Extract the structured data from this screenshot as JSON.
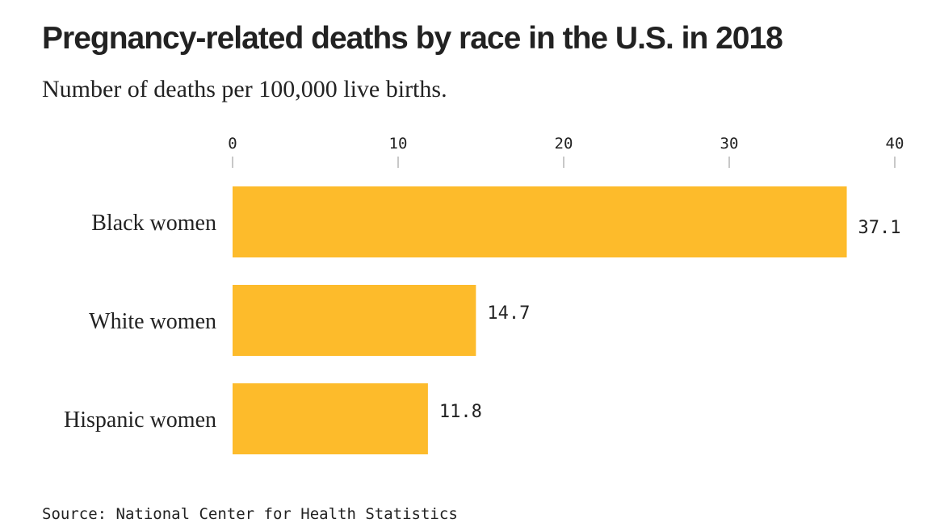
{
  "chart_data": {
    "type": "bar",
    "orientation": "horizontal",
    "title": "Pregnancy-related deaths by race in the U.S. in 2018",
    "subtitle": "Number of deaths per 100,000 live births.",
    "categories": [
      "Black women",
      "White women",
      "Hispanic women"
    ],
    "values": [
      37.1,
      14.7,
      11.8
    ],
    "value_labels": [
      "37.1",
      "14.7",
      "11.8"
    ],
    "xlim": [
      0,
      40
    ],
    "ticks": [
      0,
      10,
      20,
      30,
      40
    ],
    "tick_labels": [
      "0",
      "10",
      "20",
      "30",
      "40"
    ],
    "axis_position": "top",
    "grid": false,
    "bar_color": "#FDBB2B",
    "source": "Source: National Center for Health Statistics"
  }
}
